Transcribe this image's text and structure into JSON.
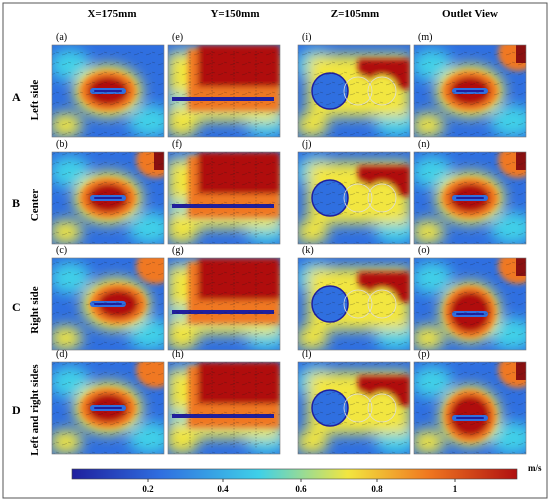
{
  "columns": [
    "X=175mm",
    "Y=150mm",
    "Z=105mm",
    "Outlet View"
  ],
  "rows": [
    {
      "letter": "A",
      "name": "Left side"
    },
    {
      "letter": "B",
      "name": "Center"
    },
    {
      "letter": "C",
      "name": "Right side"
    },
    {
      "letter": "D",
      "name": "Left and right sides"
    }
  ],
  "panel_labels": [
    [
      "(a)",
      "(e)",
      "(i)",
      "(m)"
    ],
    [
      "(b)",
      "(f)",
      "(j)",
      "(n)"
    ],
    [
      "(c)",
      "(g)",
      "(k)",
      "(o)"
    ],
    [
      "(d)",
      "(h)",
      "(l)",
      "(p)"
    ]
  ],
  "colorbar": {
    "ticks": [
      "0.2",
      "0.4",
      "0.6",
      "0.8",
      "1"
    ],
    "unit": "m/s",
    "colors": [
      "#1f1f9e",
      "#2f6fe0",
      "#3fd0e8",
      "#f2e640",
      "#f07820",
      "#b01010"
    ]
  }
}
